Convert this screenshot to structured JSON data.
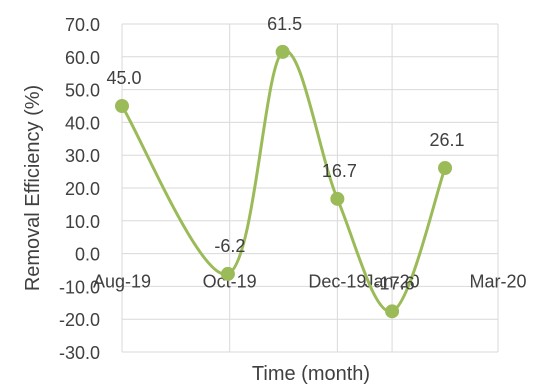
{
  "chart_data": {
    "type": "line",
    "smooth": true,
    "xlabel": "Time (month)",
    "ylabel": "Removal Efficiency (%)",
    "ylim": [
      -30,
      70
    ],
    "ytick_step": 10,
    "y_ticks": [
      "70.0",
      "60.0",
      "50.0",
      "40.0",
      "30.0",
      "20.0",
      "10.0",
      "0.0",
      "-10.0",
      "-20.0",
      "-30.0"
    ],
    "x_range": [
      "2019-08-01",
      "2020-03-01"
    ],
    "x_ticks": [
      {
        "date": "2019-08-01",
        "label": "Aug-19"
      },
      {
        "date": "2019-10-01",
        "label": "Oct-19"
      },
      {
        "date": "2019-12-01",
        "label": "Dec-19"
      },
      {
        "date": "2020-01-01",
        "label": "Jan-20"
      },
      {
        "date": "2020-03-01",
        "label": "Mar-20"
      }
    ],
    "grid": true,
    "legend": false,
    "colors": {
      "line": "#9bbb59",
      "marker": "#9bbb59",
      "grid": "#d9d9d9",
      "text": "#404040"
    },
    "series": [
      {
        "points": [
          {
            "x": "2019-08-01",
            "y": 45.0,
            "label": "45.0"
          },
          {
            "x": "2019-09-30",
            "y": -6.2,
            "label": "-6.2"
          },
          {
            "x": "2019-10-31",
            "y": 61.5,
            "label": "61.5"
          },
          {
            "x": "2019-12-01",
            "y": 16.7,
            "label": "16.7"
          },
          {
            "x": "2020-01-01",
            "y": -17.6,
            "label": "-17.6"
          },
          {
            "x": "2020-01-31",
            "y": 26.1,
            "label": "26.1"
          }
        ]
      }
    ]
  }
}
